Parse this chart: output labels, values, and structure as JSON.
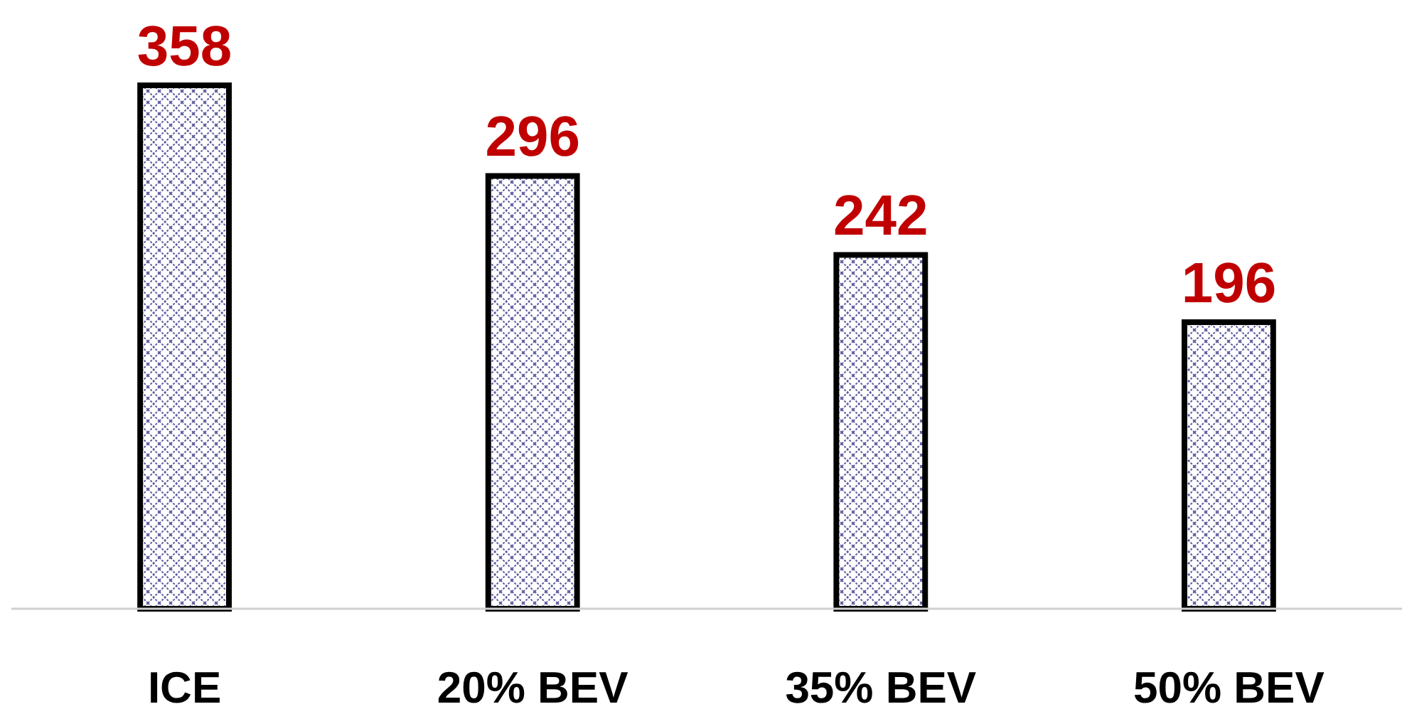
{
  "chart_data": {
    "type": "bar",
    "categories": [
      "ICE",
      "20% BEV",
      "35% BEV",
      "50% BEV"
    ],
    "values": [
      358,
      296,
      242,
      196
    ],
    "color": "#000000",
    "data_labels": true
  }
}
